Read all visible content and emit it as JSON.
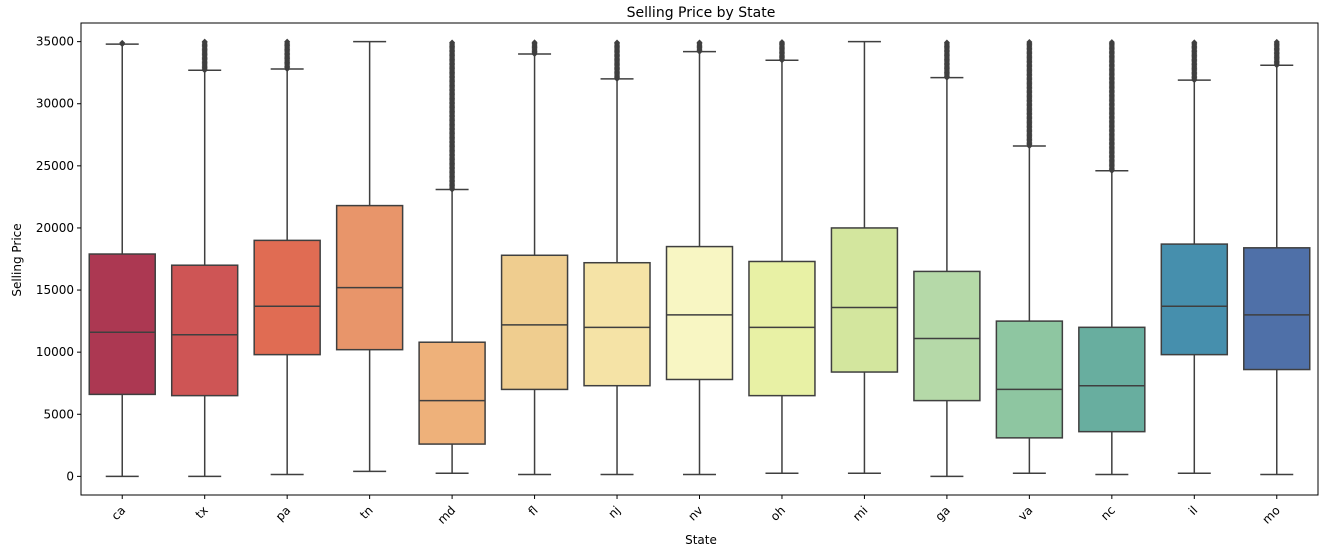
{
  "chart_data": {
    "type": "boxplot",
    "title": "Selling Price by State",
    "xlabel": "State",
    "ylabel": "Selling Price",
    "ylim": [
      -1500,
      36500
    ],
    "yticks": [
      0,
      5000,
      10000,
      15000,
      20000,
      25000,
      30000,
      35000
    ],
    "grid": false,
    "legend": "none",
    "categories": [
      "ca",
      "tx",
      "pa",
      "tn",
      "md",
      "fl",
      "nj",
      "nv",
      "oh",
      "mi",
      "ga",
      "va",
      "nc",
      "il",
      "mo"
    ],
    "colors": [
      "#ac3852",
      "#ce5555",
      "#e06c53",
      "#e8956a",
      "#eeb17a",
      "#efcd8f",
      "#f5e3a6",
      "#f8f6c3",
      "#e8f1a5",
      "#d3e69e",
      "#b5d9a8",
      "#8ec6a1",
      "#68ae9f",
      "#468fad",
      "#4f70a8"
    ],
    "series": [
      {
        "category": "ca",
        "min": 0,
        "q1": 6600,
        "median": 11600,
        "q3": 17900,
        "max": 34800,
        "outliers_from": 34800,
        "outliers_to": 35000
      },
      {
        "category": "tx",
        "min": 0,
        "q1": 6500,
        "median": 11400,
        "q3": 17000,
        "max": 32700,
        "outliers_from": 32700,
        "outliers_to": 35000
      },
      {
        "category": "pa",
        "min": 150,
        "q1": 9800,
        "median": 13700,
        "q3": 19000,
        "max": 32800,
        "outliers_from": 32800,
        "outliers_to": 35000
      },
      {
        "category": "tn",
        "min": 400,
        "q1": 10200,
        "median": 15200,
        "q3": 21800,
        "max": 35000,
        "outliers_from": null,
        "outliers_to": null
      },
      {
        "category": "md",
        "min": 250,
        "q1": 2600,
        "median": 6100,
        "q3": 10800,
        "max": 23100,
        "outliers_from": 23100,
        "outliers_to": 35000
      },
      {
        "category": "fl",
        "min": 150,
        "q1": 7000,
        "median": 12200,
        "q3": 17800,
        "max": 34000,
        "outliers_from": 34000,
        "outliers_to": 35000
      },
      {
        "category": "nj",
        "min": 150,
        "q1": 7300,
        "median": 12000,
        "q3": 17200,
        "max": 32000,
        "outliers_from": 32000,
        "outliers_to": 35000
      },
      {
        "category": "nv",
        "min": 150,
        "q1": 7800,
        "median": 13000,
        "q3": 18500,
        "max": 34200,
        "outliers_from": 34200,
        "outliers_to": 35000
      },
      {
        "category": "oh",
        "min": 250,
        "q1": 6500,
        "median": 12000,
        "q3": 17300,
        "max": 33500,
        "outliers_from": 33500,
        "outliers_to": 35000
      },
      {
        "category": "mi",
        "min": 250,
        "q1": 8400,
        "median": 13600,
        "q3": 20000,
        "max": 35000,
        "outliers_from": null,
        "outliers_to": null
      },
      {
        "category": "ga",
        "min": 0,
        "q1": 6100,
        "median": 11100,
        "q3": 16500,
        "max": 32100,
        "outliers_from": 32100,
        "outliers_to": 35000
      },
      {
        "category": "va",
        "min": 250,
        "q1": 3100,
        "median": 7000,
        "q3": 12500,
        "max": 26600,
        "outliers_from": 26600,
        "outliers_to": 35000
      },
      {
        "category": "nc",
        "min": 150,
        "q1": 3600,
        "median": 7300,
        "q3": 12000,
        "max": 24600,
        "outliers_from": 24600,
        "outliers_to": 35000
      },
      {
        "category": "il",
        "min": 250,
        "q1": 9800,
        "median": 13700,
        "q3": 18700,
        "max": 31900,
        "outliers_from": 31900,
        "outliers_to": 35000
      },
      {
        "category": "mo",
        "min": 150,
        "q1": 8600,
        "median": 13000,
        "q3": 18400,
        "max": 33100,
        "outliers_from": 33100,
        "outliers_to": 35000
      }
    ]
  }
}
